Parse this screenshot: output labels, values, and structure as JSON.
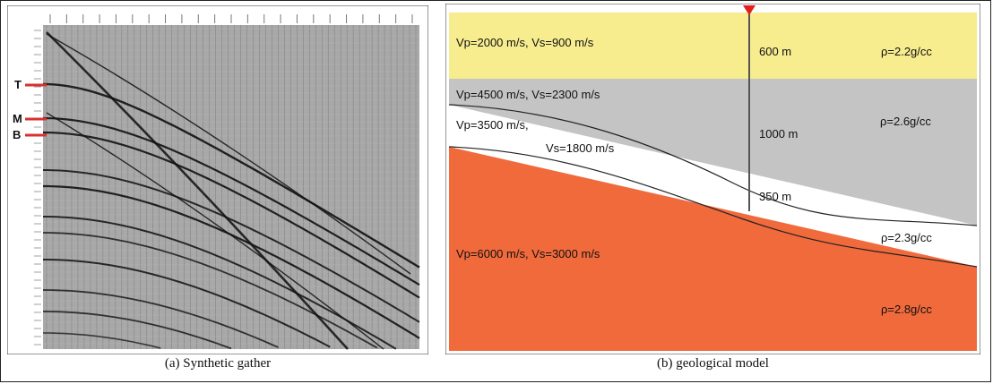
{
  "panel_a": {
    "caption": "(a) Synthetic gather",
    "horizon_labels": [
      {
        "id": "T",
        "text": "T"
      },
      {
        "id": "M",
        "text": "M"
      },
      {
        "id": "B",
        "text": "B"
      }
    ],
    "colors": {
      "background": "#a8a8a8",
      "trace": "#666666",
      "event": "#111111",
      "marker": "#d93030"
    }
  },
  "panel_b": {
    "caption": "(b) geological model",
    "layers": [
      {
        "id": "layer-1",
        "velocity_text": "Vp=2000 m/s, Vs=900 m/s",
        "density_text": "ρ=2.2g/cc",
        "thickness_text": "600 m",
        "color": "#f7ec8e"
      },
      {
        "id": "layer-2",
        "velocity_text": "Vp=4500 m/s, Vs=2300 m/s",
        "density_text": "ρ=2.6g/cc",
        "thickness_text": "1000 m",
        "color": "#c4c4c4"
      },
      {
        "id": "layer-3",
        "velocity_text_line1": "Vp=3500 m/s,",
        "velocity_text_line2": "Vs=1800 m/s",
        "density_text": "ρ=2.3g/cc",
        "thickness_text": "350 m",
        "color": "#ffffff"
      },
      {
        "id": "layer-4",
        "velocity_text": "Vp=6000 m/s, Vs=3000 m/s",
        "density_text": "ρ=2.8g/cc",
        "color": "#f06a3c"
      }
    ],
    "source_marker_color": "#e02020"
  }
}
